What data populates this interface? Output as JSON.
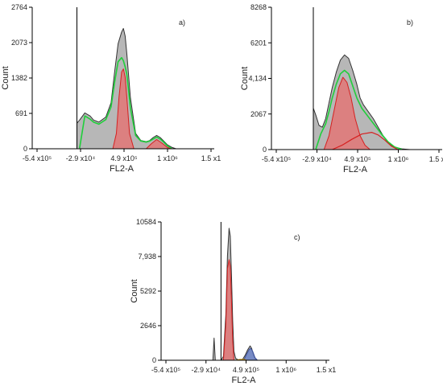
{
  "colors": {
    "gray_fill": "#b7b7b7",
    "red_fill": "#e07a7a",
    "red_line": "#d62020",
    "green_line": "#1fcf3a",
    "blue_fill": "#6c84c8",
    "gold_fill": "#e6b13a",
    "axis": "#000000"
  },
  "chart_data": [
    {
      "type": "area",
      "panel_label": "a)",
      "xlabel": "FL2-A",
      "ylabel": "Count",
      "ylim": [
        0,
        2764
      ],
      "yticks": [
        "0",
        "691",
        "1382",
        "2073",
        "2764"
      ],
      "xticks": [
        "-5.4 x10⁵",
        "-2.9 x10⁴",
        "4.9 x10⁵",
        "1 x10⁶",
        "1.5 x1"
      ],
      "xlim": [
        -540000,
        1500000
      ],
      "gate_x": -30000,
      "series": [
        {
          "style": "gray-fill",
          "x": [
            -30000,
            0,
            60000,
            120000,
            160000,
            220000,
            300000,
            360000,
            400000,
            440000,
            480000,
            500000,
            520000,
            540000,
            580000,
            640000,
            700000,
            760000,
            800000,
            840000,
            880000,
            920000,
            960000,
            1000000,
            1050000,
            1100000
          ],
          "y": [
            500,
            560,
            700,
            640,
            560,
            520,
            620,
            900,
            1500,
            2050,
            2280,
            2350,
            2200,
            1850,
            1000,
            300,
            160,
            140,
            160,
            220,
            260,
            220,
            150,
            80,
            30,
            0
          ]
        },
        {
          "style": "green-line",
          "x": [
            0,
            60000,
            120000,
            160000,
            220000,
            300000,
            360000,
            400000,
            440000,
            480000,
            500000,
            520000,
            540000,
            580000,
            640000,
            700000,
            760000,
            800000,
            840000,
            880000,
            920000,
            960000,
            1000000,
            1050000
          ],
          "y": [
            10,
            640,
            580,
            520,
            480,
            570,
            820,
            1300,
            1700,
            1780,
            1720,
            1600,
            1450,
            800,
            260,
            150,
            130,
            150,
            190,
            230,
            190,
            130,
            60,
            10
          ]
        },
        {
          "style": "red-fill",
          "x": [
            380000,
            420000,
            450000,
            480000,
            500000,
            520000,
            540000,
            570000,
            620000
          ],
          "y": [
            0,
            300,
            1000,
            1500,
            1560,
            1400,
            1000,
            300,
            0
          ]
        },
        {
          "style": "red-fill",
          "x": [
            760000,
            820000,
            880000,
            940000,
            1000000,
            1040000
          ],
          "y": [
            0,
            100,
            180,
            110,
            30,
            0
          ]
        }
      ]
    },
    {
      "type": "area",
      "panel_label": "b)",
      "xlabel": "FL2-A",
      "ylabel": "Count",
      "ylim": [
        0,
        8268
      ],
      "yticks": [
        "0",
        "2067",
        "4,134",
        "6201",
        "8268"
      ],
      "xticks": [
        "-5.4 x10⁵",
        "-2.9 x10⁴",
        "4.9 x10⁵",
        "1 x10⁶",
        "1.5 x1"
      ],
      "xlim": [
        -540000,
        1500000
      ],
      "gate_x": -30000,
      "series": [
        {
          "style": "gray-fill",
          "x": [
            -30000,
            0,
            40000,
            80000,
            120000,
            160000,
            200000,
            250000,
            300000,
            350000,
            400000,
            450000,
            500000,
            540000,
            580000,
            640000,
            700000,
            760000,
            820000,
            880000,
            950000,
            1050000,
            1150000
          ],
          "y": [
            2400,
            2000,
            1400,
            1300,
            1800,
            2700,
            3600,
            4500,
            5200,
            5500,
            5300,
            4600,
            3800,
            3000,
            2600,
            2200,
            1800,
            1300,
            800,
            400,
            150,
            40,
            0
          ]
        },
        {
          "style": "green-line",
          "x": [
            0,
            60000,
            120000,
            160000,
            200000,
            250000,
            300000,
            350000,
            400000,
            450000,
            500000,
            560000,
            640000,
            720000,
            800000,
            880000,
            960000,
            1050000
          ],
          "y": [
            20,
            900,
            1500,
            2200,
            3000,
            3800,
            4400,
            4600,
            4400,
            3700,
            3000,
            2400,
            1900,
            1400,
            900,
            450,
            150,
            10
          ]
        },
        {
          "style": "red-fill",
          "x": [
            100000,
            160000,
            220000,
            280000,
            330000,
            380000,
            430000,
            480000,
            540000,
            600000,
            660000
          ],
          "y": [
            0,
            800,
            2200,
            3600,
            4200,
            3900,
            3000,
            1800,
            800,
            250,
            0
          ]
        },
        {
          "style": "red-line",
          "x": [
            200000,
            320000,
            440000,
            560000,
            680000,
            760000,
            840000,
            920000,
            1000000
          ],
          "y": [
            0,
            250,
            600,
            900,
            1000,
            850,
            550,
            200,
            0
          ]
        }
      ]
    },
    {
      "type": "area",
      "panel_label": "c)",
      "xlabel": "FL2-A",
      "ylabel": "Count",
      "ylim": [
        0,
        10584
      ],
      "yticks": [
        "0",
        "2646",
        "5292",
        "7,938",
        "10584"
      ],
      "xticks": [
        "-5.4 x10⁵",
        "-2.9 x10⁴",
        "4.9 x10⁵",
        "1 x10⁶",
        "1.5 x1"
      ],
      "xlim": [
        -540000,
        1500000
      ],
      "gate_x": 200000,
      "series": [
        {
          "style": "gray-fill",
          "x": [
            100000,
            115000,
            130000,
            145000,
            160000,
            200000,
            230000,
            260000,
            280000,
            300000,
            315000,
            330000,
            345000,
            360000,
            380000,
            420000,
            460000,
            500000,
            530000,
            560000,
            580000,
            600000,
            620000,
            640000
          ],
          "y": [
            0,
            1700,
            0,
            0,
            0,
            0,
            300,
            3500,
            8000,
            10100,
            9500,
            6500,
            3000,
            700,
            150,
            0,
            0,
            400,
            800,
            1100,
            900,
            400,
            100,
            0
          ]
        },
        {
          "style": "red-fill",
          "x": [
            230000,
            260000,
            280000,
            300000,
            315000,
            330000,
            345000,
            360000
          ],
          "y": [
            0,
            2800,
            7000,
            7700,
            7200,
            4500,
            1500,
            0
          ]
        },
        {
          "style": "blue-fill",
          "x": [
            480000,
            520000,
            550000,
            570000,
            590000,
            620000,
            650000
          ],
          "y": [
            0,
            500,
            850,
            900,
            700,
            200,
            0
          ]
        },
        {
          "style": "gold-fill",
          "x": [
            380000,
            430000,
            480000,
            520000
          ],
          "y": [
            0,
            60,
            80,
            0
          ]
        }
      ]
    }
  ]
}
